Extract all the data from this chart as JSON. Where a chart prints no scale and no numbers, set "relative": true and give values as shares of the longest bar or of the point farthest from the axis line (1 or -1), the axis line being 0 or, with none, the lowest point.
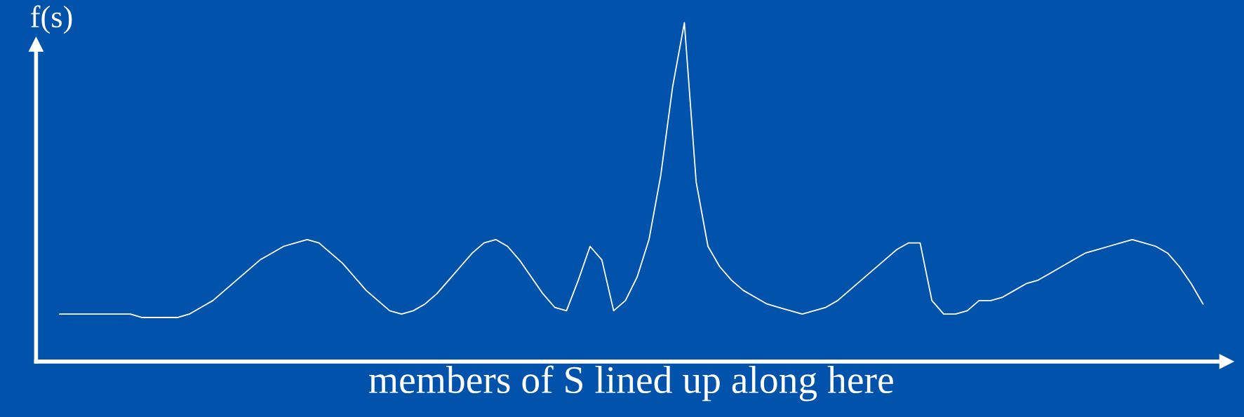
{
  "chart_data": {
    "type": "line",
    "relative": true,
    "ylabel": "f(s)",
    "xlabel": "members of S lined up along here",
    "color": "#ffffff",
    "grid": false,
    "legend": false,
    "tick_labels": false,
    "categories": [
      null,
      null,
      null,
      null,
      null,
      null,
      null,
      null,
      null,
      null,
      null,
      null,
      null,
      null,
      null,
      null,
      null,
      null,
      null,
      null,
      null,
      null,
      null,
      null,
      null,
      null,
      null,
      null,
      null,
      null,
      null,
      null,
      null,
      null,
      null,
      null,
      null,
      null,
      null,
      null,
      null,
      null,
      null,
      null,
      null,
      null,
      null,
      null,
      null,
      null,
      null,
      null,
      null,
      null,
      null,
      null,
      null,
      null,
      null,
      null,
      null,
      null,
      null,
      null,
      null,
      null,
      null,
      null,
      null,
      null,
      null,
      null,
      null,
      null,
      null,
      null,
      null,
      null,
      null,
      null,
      null,
      null,
      null,
      null,
      null,
      null,
      null,
      null,
      null,
      null,
      null,
      null,
      null,
      null,
      null,
      null,
      null,
      null
    ],
    "values": [
      0.14,
      0.14,
      0.14,
      0.14,
      0.14,
      0.14,
      0.14,
      0.13,
      0.13,
      0.13,
      0.13,
      0.14,
      0.16,
      0.18,
      0.21,
      0.24,
      0.27,
      0.3,
      0.32,
      0.34,
      0.35,
      0.36,
      0.35,
      0.32,
      0.29,
      0.25,
      0.21,
      0.18,
      0.15,
      0.14,
      0.15,
      0.17,
      0.2,
      0.24,
      0.28,
      0.32,
      0.35,
      0.36,
      0.34,
      0.3,
      0.25,
      0.2,
      0.16,
      0.15,
      0.24,
      0.34,
      0.3,
      0.15,
      0.18,
      0.25,
      0.36,
      0.55,
      0.81,
      1.0,
      0.53,
      0.34,
      0.28,
      0.24,
      0.21,
      0.19,
      0.17,
      0.16,
      0.15,
      0.14,
      0.15,
      0.16,
      0.18,
      0.21,
      0.24,
      0.27,
      0.3,
      0.33,
      0.35,
      0.35,
      0.18,
      0.14,
      0.14,
      0.15,
      0.18,
      0.18,
      0.19,
      0.21,
      0.23,
      0.24,
      0.26,
      0.28,
      0.3,
      0.32,
      0.33,
      0.34,
      0.35,
      0.36,
      0.35,
      0.34,
      0.32,
      0.28,
      0.23,
      0.17
    ]
  }
}
